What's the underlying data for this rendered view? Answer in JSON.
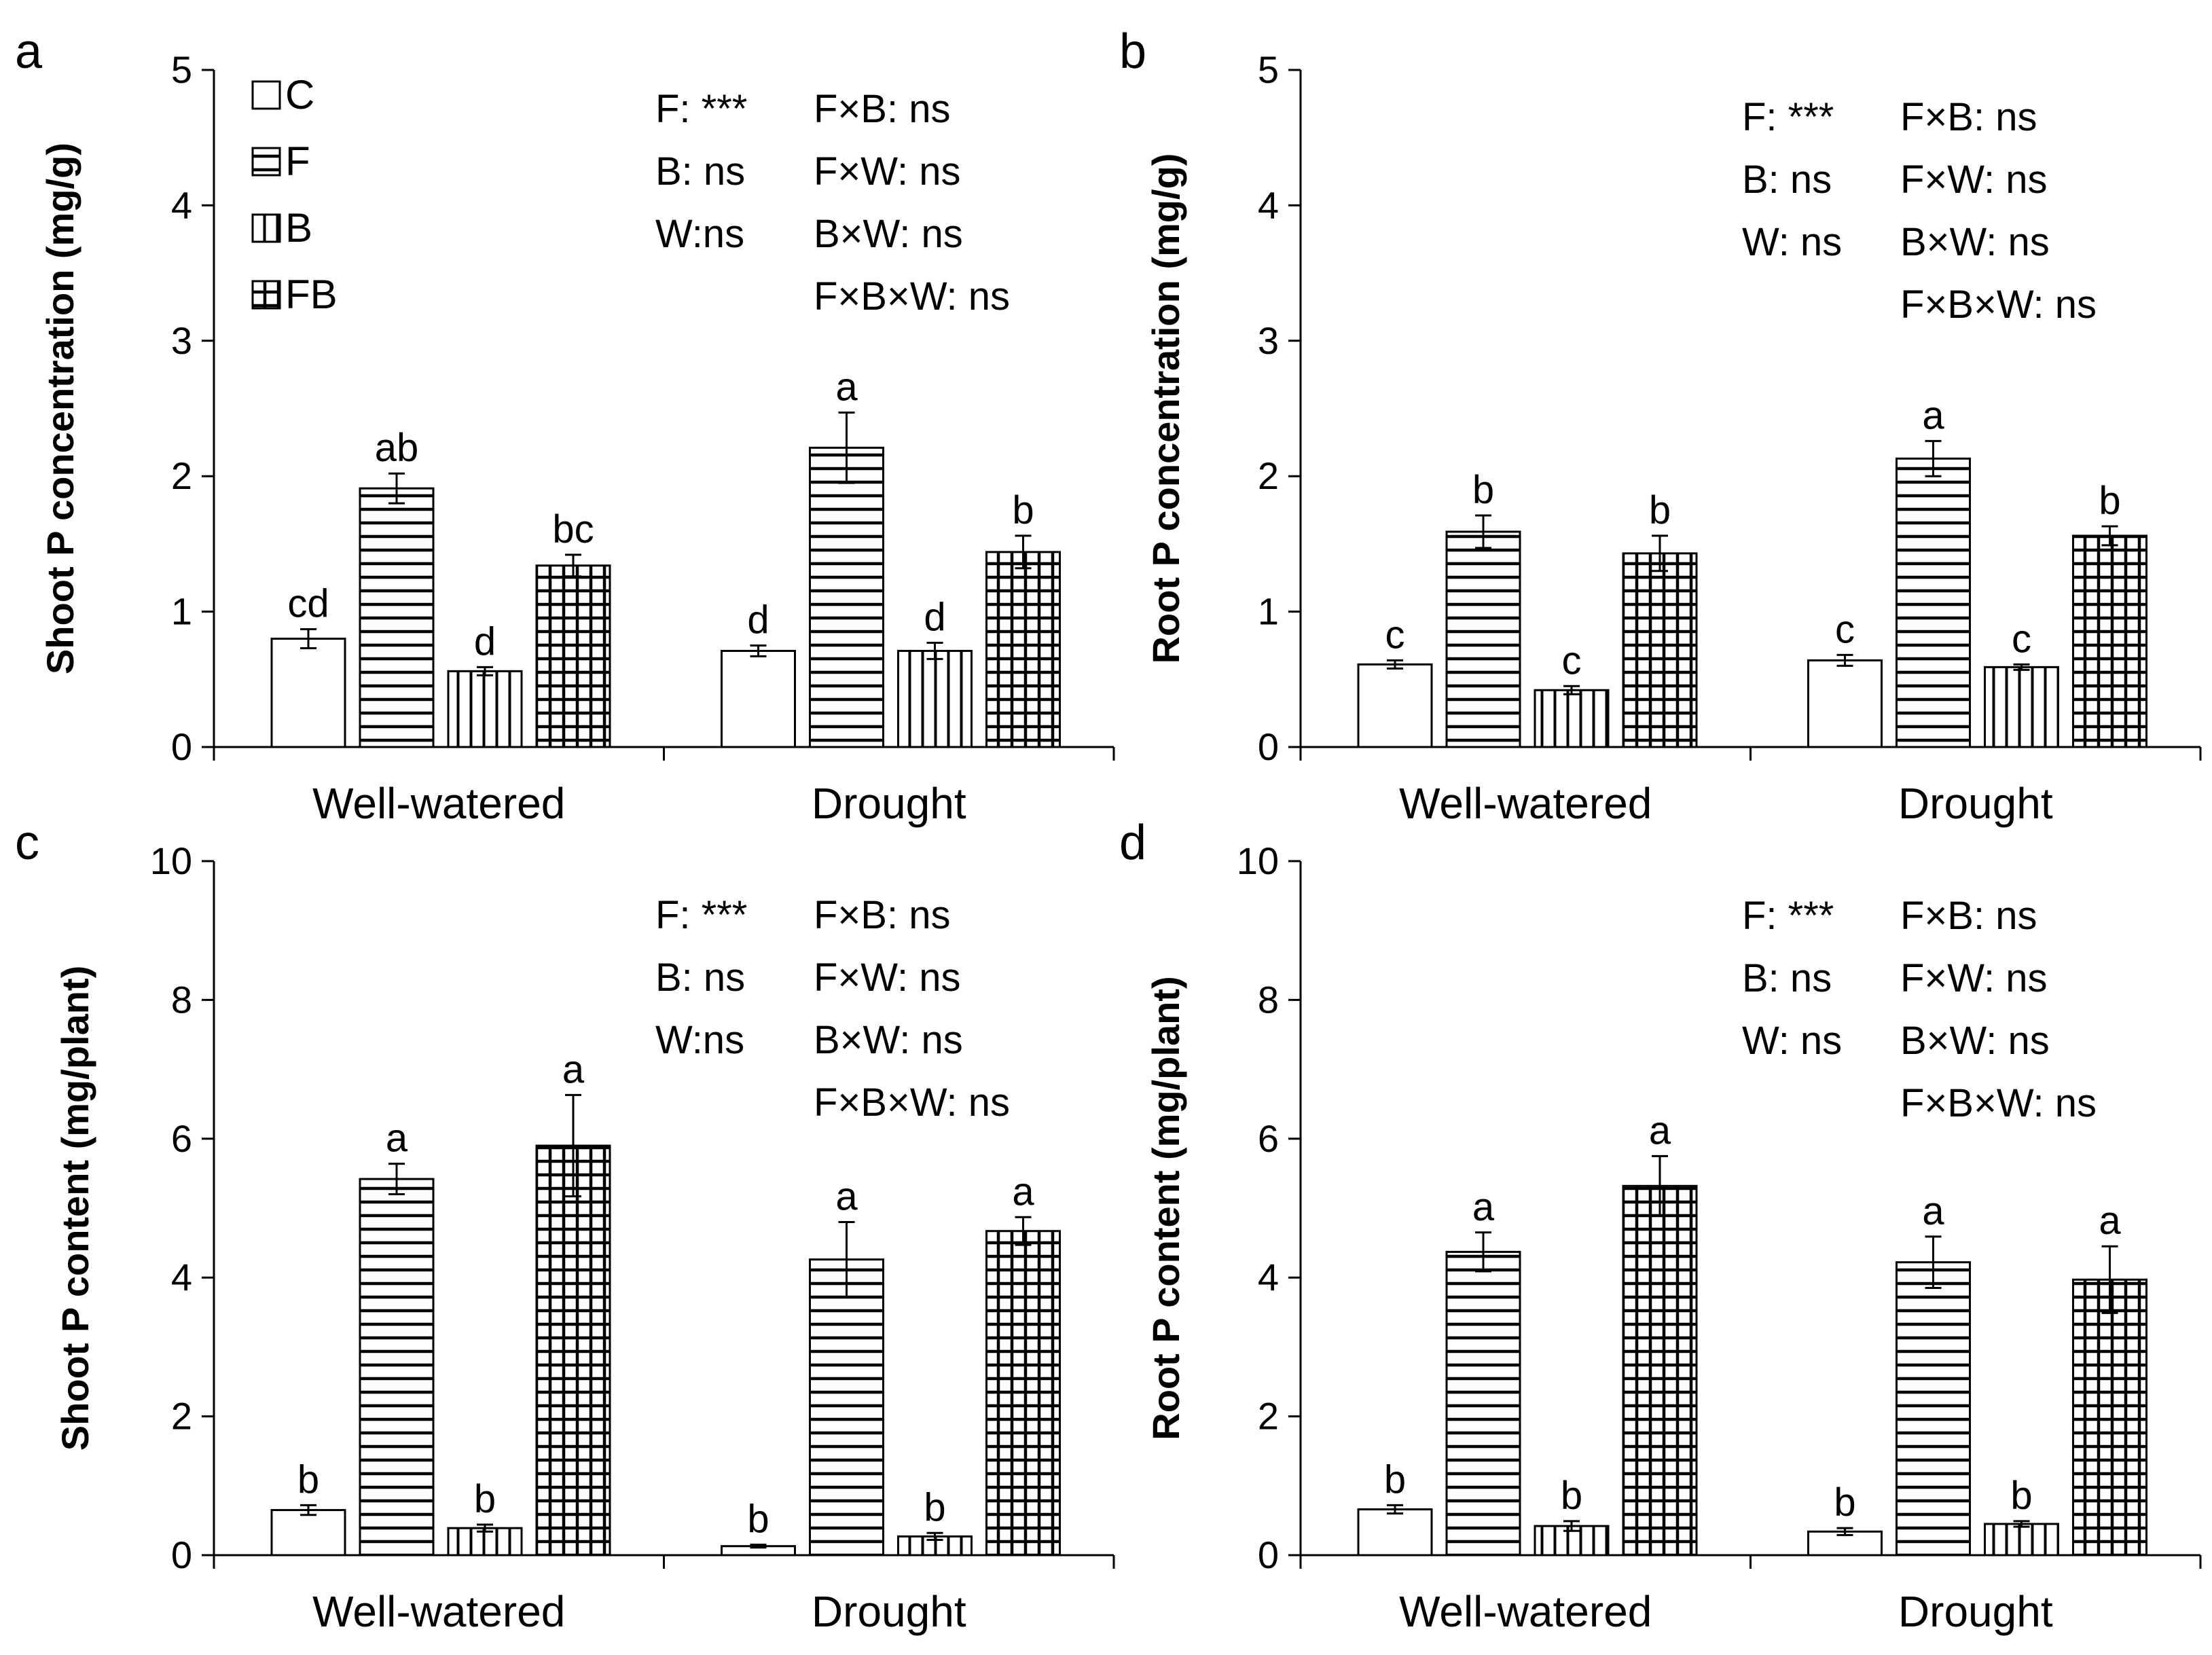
{
  "chart_data": [
    {
      "type": "bar",
      "panel": "a",
      "ylabel": "Shoot P concentration (mg/g)",
      "ylim": [
        0,
        5
      ],
      "yticks": [
        0,
        1,
        2,
        3,
        4,
        5
      ],
      "categories": [
        "Well-watered",
        "Drought"
      ],
      "series": [
        {
          "name": "C",
          "pattern": "none",
          "values": [
            0.8,
            0.71
          ],
          "errors": [
            0.07,
            0.04
          ],
          "letters": [
            "cd",
            "d"
          ]
        },
        {
          "name": "F",
          "pattern": "horizontal",
          "values": [
            1.91,
            2.21
          ],
          "errors": [
            0.11,
            0.26
          ],
          "letters": [
            "ab",
            "a"
          ]
        },
        {
          "name": "B",
          "pattern": "vertical",
          "values": [
            0.56,
            0.71
          ],
          "errors": [
            0.03,
            0.06
          ],
          "letters": [
            "d",
            "d"
          ]
        },
        {
          "name": "FB",
          "pattern": "grid",
          "values": [
            1.34,
            1.44
          ],
          "errors": [
            0.08,
            0.12
          ],
          "letters": [
            "bc",
            "b"
          ]
        }
      ],
      "stats": [
        [
          "F: ***",
          "F×B: ns"
        ],
        [
          "B: ns",
          "F×W: ns"
        ],
        [
          "W:ns",
          "B×W: ns"
        ],
        [
          "",
          "F×B×W: ns"
        ]
      ],
      "legend": true
    },
    {
      "type": "bar",
      "panel": "b",
      "ylabel": "Root P concentration (mg/g)",
      "ylim": [
        0,
        5
      ],
      "yticks": [
        0,
        1,
        2,
        3,
        4,
        5
      ],
      "categories": [
        "Well-watered",
        "Drought"
      ],
      "series": [
        {
          "name": "C",
          "pattern": "none",
          "values": [
            0.61,
            0.64
          ],
          "errors": [
            0.03,
            0.04
          ],
          "letters": [
            "c",
            "c"
          ]
        },
        {
          "name": "F",
          "pattern": "horizontal",
          "values": [
            1.59,
            2.13
          ],
          "errors": [
            0.12,
            0.13
          ],
          "letters": [
            "b",
            "a"
          ]
        },
        {
          "name": "B",
          "pattern": "vertical",
          "values": [
            0.42,
            0.59
          ],
          "errors": [
            0.03,
            0.02
          ],
          "letters": [
            "c",
            "c"
          ]
        },
        {
          "name": "FB",
          "pattern": "grid",
          "values": [
            1.43,
            1.56
          ],
          "errors": [
            0.13,
            0.07
          ],
          "letters": [
            "b",
            "b"
          ]
        }
      ],
      "stats": [
        [
          "F: ***",
          "F×B: ns"
        ],
        [
          "B: ns",
          "F×W: ns"
        ],
        [
          "W: ns",
          "B×W: ns"
        ],
        [
          "",
          "F×B×W: ns"
        ]
      ],
      "legend": false
    },
    {
      "type": "bar",
      "panel": "c",
      "ylabel": "Shoot P content (mg/plant)",
      "ylim": [
        0,
        10
      ],
      "yticks": [
        0,
        2,
        4,
        6,
        8,
        10
      ],
      "categories": [
        "Well-watered",
        "Drought"
      ],
      "series": [
        {
          "name": "C",
          "pattern": "none",
          "values": [
            0.65,
            0.13
          ],
          "errors": [
            0.07,
            0.02
          ],
          "letters": [
            "b",
            "b"
          ]
        },
        {
          "name": "F",
          "pattern": "horizontal",
          "values": [
            5.42,
            4.26
          ],
          "errors": [
            0.22,
            0.54
          ],
          "letters": [
            "a",
            "a"
          ]
        },
        {
          "name": "B",
          "pattern": "vertical",
          "values": [
            0.39,
            0.27
          ],
          "errors": [
            0.05,
            0.05
          ],
          "letters": [
            "b",
            "b"
          ]
        },
        {
          "name": "FB",
          "pattern": "grid",
          "values": [
            5.9,
            4.67
          ],
          "errors": [
            0.73,
            0.2
          ],
          "letters": [
            "a",
            "a"
          ]
        }
      ],
      "stats": [
        [
          "F: ***",
          "F×B: ns"
        ],
        [
          "B: ns",
          "F×W: ns"
        ],
        [
          "W:ns",
          "B×W: ns"
        ],
        [
          "",
          "F×B×W: ns"
        ]
      ],
      "legend": false
    },
    {
      "type": "bar",
      "panel": "d",
      "ylabel": "Root P content (mg/plant)",
      "ylim": [
        0,
        10
      ],
      "yticks": [
        0,
        2,
        4,
        6,
        8,
        10
      ],
      "categories": [
        "Well-watered",
        "Drought"
      ],
      "series": [
        {
          "name": "C",
          "pattern": "none",
          "values": [
            0.66,
            0.34
          ],
          "errors": [
            0.06,
            0.05
          ],
          "letters": [
            "b",
            "b"
          ]
        },
        {
          "name": "F",
          "pattern": "horizontal",
          "values": [
            4.37,
            4.22
          ],
          "errors": [
            0.28,
            0.37
          ],
          "letters": [
            "a",
            "a"
          ]
        },
        {
          "name": "B",
          "pattern": "vertical",
          "values": [
            0.42,
            0.45
          ],
          "errors": [
            0.07,
            0.04
          ],
          "letters": [
            "b",
            "b"
          ]
        },
        {
          "name": "FB",
          "pattern": "grid",
          "values": [
            5.32,
            3.97
          ],
          "errors": [
            0.43,
            0.48
          ],
          "letters": [
            "a",
            "a"
          ]
        }
      ],
      "stats": [
        [
          "F: ***",
          "F×B: ns"
        ],
        [
          "B: ns",
          "F×W: ns"
        ],
        [
          "W: ns",
          "B×W: ns"
        ],
        [
          "",
          "F×B×W: ns"
        ]
      ],
      "legend": false
    }
  ],
  "legend": [
    {
      "label": "C",
      "pattern": "none"
    },
    {
      "label": "F",
      "pattern": "horizontal"
    },
    {
      "label": "B",
      "pattern": "vertical"
    },
    {
      "label": "FB",
      "pattern": "grid"
    }
  ],
  "colors": {
    "ink": "#000000",
    "fill": "#ffffff"
  }
}
